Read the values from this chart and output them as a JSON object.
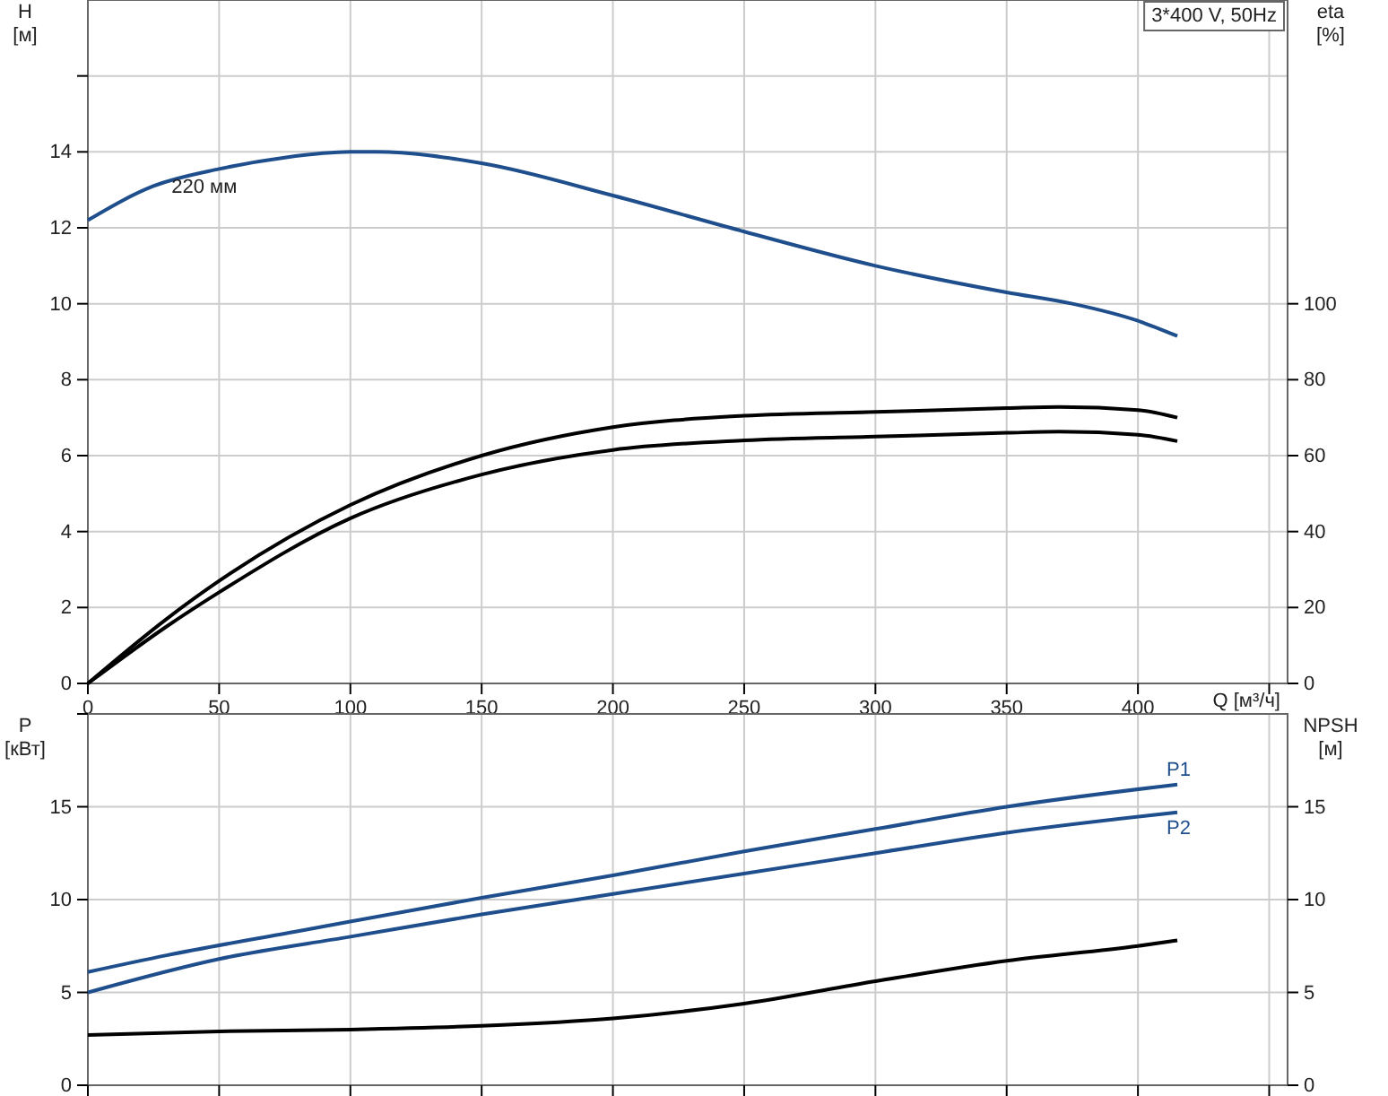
{
  "chart_data": [
    {
      "type": "line",
      "title": "3*400 V, 50Hz",
      "xlabel": "Q [м³/ч]",
      "ylabel": "H [м]",
      "y2label": "eta [%]",
      "xlim": [
        0,
        457
      ],
      "xticks": [
        0,
        50,
        100,
        150,
        200,
        250,
        300,
        350,
        400,
        {
          "value": 450,
          "label": null
        }
      ],
      "ylim": [
        0,
        18
      ],
      "yticks": [
        0,
        2,
        4,
        6,
        8,
        10,
        12,
        14,
        {
          "value": 16,
          "label": null
        }
      ],
      "y2lim": [
        0,
        180
      ],
      "y2ticks": [
        0,
        20,
        40,
        60,
        80,
        100
      ],
      "grid": true,
      "marker": "none",
      "line_style": "solid",
      "annotations": [
        {
          "text": "220 мм",
          "x": 25,
          "y": 13.1
        }
      ],
      "series": [
        {
          "color": "#1f4e8c",
          "x": [
            0,
            25,
            50,
            75,
            100,
            110,
            150,
            200,
            250,
            300,
            350,
            375,
            400,
            415
          ],
          "values": [
            12.2,
            13.1,
            13.55,
            13.85,
            14.0,
            14.0,
            13.7,
            12.85,
            11.9,
            11.0,
            10.3,
            10.0,
            9.55,
            9.15
          ]
        },
        {
          "color": "#000000",
          "axis": "y2",
          "x": [
            0,
            30,
            50,
            100,
            150,
            200,
            250,
            300,
            350,
            370,
            400,
            415
          ],
          "values": [
            0,
            17,
            27,
            47,
            60,
            67.5,
            70.5,
            71.5,
            72.5,
            72.8,
            72,
            70
          ]
        },
        {
          "color": "#000000",
          "axis": "y2",
          "x": [
            0,
            30,
            50,
            100,
            150,
            200,
            250,
            300,
            350,
            370,
            400,
            415
          ],
          "values": [
            0,
            15,
            24,
            43.5,
            55,
            61.5,
            64,
            65,
            66,
            66.3,
            65.5,
            63.8
          ]
        }
      ]
    },
    {
      "type": "line",
      "ylabel": "P [кВт]",
      "y2label": "NPSH [м]",
      "xlim": [
        0,
        457
      ],
      "xticks": [
        0,
        50,
        100,
        150,
        200,
        250,
        300,
        350,
        400,
        450
      ],
      "ylim": [
        0,
        20
      ],
      "yticks": [
        0,
        5,
        10,
        15,
        {
          "value": 20,
          "label": null
        }
      ],
      "y2lim": [
        0,
        20
      ],
      "y2ticks": [
        0,
        5,
        10,
        15
      ],
      "tick_labels": "y",
      "grid": true,
      "marker": "none",
      "line_style": "solid",
      "series": [
        {
          "name": "P1",
          "color": "#1f4e8c",
          "x": [
            0,
            30,
            80,
            150,
            200,
            250,
            300,
            350,
            415
          ],
          "values": [
            6.1,
            7.0,
            8.3,
            10.1,
            11.3,
            12.6,
            13.8,
            15.0,
            16.2
          ]
        },
        {
          "name": "P2",
          "color": "#1f4e8c",
          "x": [
            0,
            50,
            100,
            150,
            200,
            250,
            300,
            350,
            415
          ],
          "values": [
            5.0,
            6.8,
            8.0,
            9.2,
            10.3,
            11.4,
            12.5,
            13.6,
            14.7
          ]
        },
        {
          "color": "#000000",
          "axis": "y2",
          "x": [
            0,
            50,
            100,
            150,
            200,
            250,
            300,
            350,
            400,
            415
          ],
          "values": [
            2.7,
            2.9,
            3.0,
            3.2,
            3.6,
            4.4,
            5.6,
            6.7,
            7.5,
            7.8
          ]
        }
      ]
    }
  ]
}
